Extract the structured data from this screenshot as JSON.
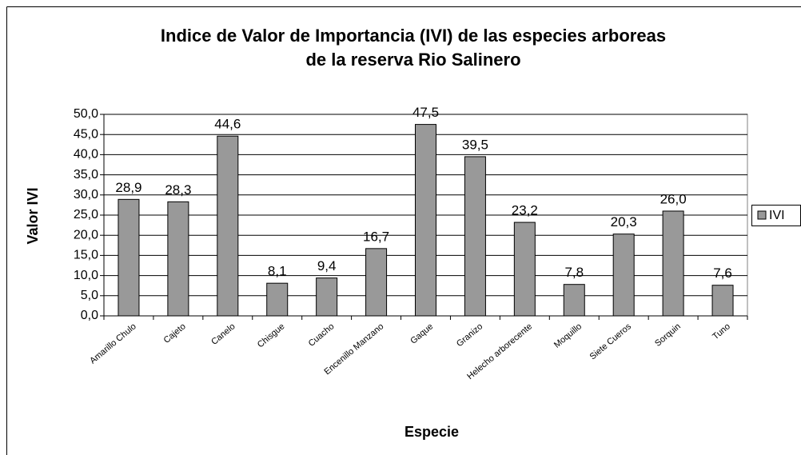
{
  "chart_data": {
    "type": "bar",
    "title": [
      "Indice de Valor de Importancia (IVI) de las especies arboreas",
      "de la reserva Rio Salinero"
    ],
    "x_label": "Especie",
    "y_label": "Valor IVI",
    "categories": [
      "Amarillo Chulo",
      "Cajeto",
      "Canelo",
      "Chisgue",
      "Cuacho",
      "Encenillo Manzano",
      "Gaque",
      "Granizo",
      "Helecho arborecente",
      "Moquillo",
      "Siete Cueros",
      "Sorquin",
      "Tuno"
    ],
    "series": [
      {
        "name": "IVI",
        "color": "#999999",
        "values": [
          28.9,
          28.3,
          44.6,
          8.1,
          9.4,
          16.7,
          47.5,
          39.5,
          23.2,
          7.8,
          20.3,
          26.0,
          7.6
        ],
        "value_labels": [
          "28,9",
          "28,3",
          "44,6",
          "8,1",
          "9,4",
          "16,7",
          "47,5",
          "39,5",
          "23,2",
          "7,8",
          "20,3",
          "26,0",
          "7,6"
        ]
      }
    ],
    "ylim": [
      0,
      50
    ],
    "yticks": [
      {
        "value": 0,
        "label": "0,0"
      },
      {
        "value": 5,
        "label": "5,0"
      },
      {
        "value": 10,
        "label": "10,0"
      },
      {
        "value": 15,
        "label": "15,0"
      },
      {
        "value": 20,
        "label": "20,0"
      },
      {
        "value": 25,
        "label": "25,0"
      },
      {
        "value": 30,
        "label": "30,0"
      },
      {
        "value": 35,
        "label": "35,0"
      },
      {
        "value": 40,
        "label": "40,0"
      },
      {
        "value": 45,
        "label": "45,0"
      },
      {
        "value": 50,
        "label": "50,0"
      }
    ],
    "grid": true,
    "legend": "right"
  }
}
